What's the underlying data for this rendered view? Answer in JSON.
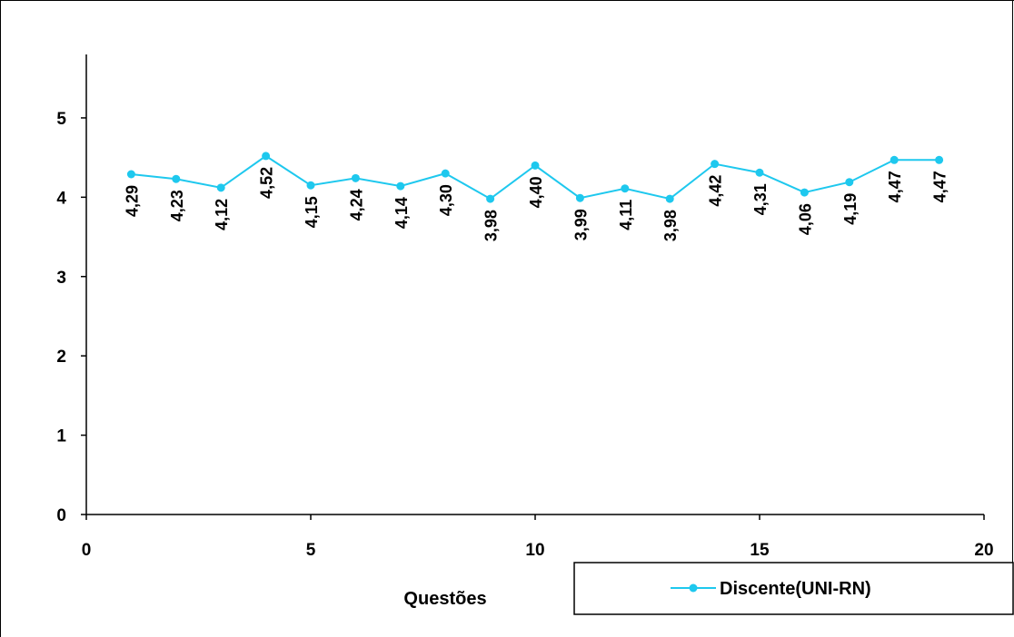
{
  "chart_data": {
    "type": "line",
    "title": "",
    "xlabel": "Questões",
    "ylabel": "",
    "xlim": [
      0,
      20
    ],
    "ylim": [
      0,
      5.8
    ],
    "x_ticks": [
      0,
      5,
      10,
      15,
      20
    ],
    "y_ticks": [
      0,
      1,
      2,
      3,
      4,
      5
    ],
    "x_tick_labels": [
      "0",
      "5",
      "10",
      "15",
      "20"
    ],
    "y_tick_labels": [
      "0",
      "1",
      "2",
      "3",
      "4",
      "5"
    ],
    "grid": false,
    "legend_position": "bottom-right",
    "x": [
      1,
      2,
      3,
      4,
      5,
      6,
      7,
      8,
      9,
      10,
      11,
      12,
      13,
      14,
      15,
      16,
      17,
      18,
      19
    ],
    "series": [
      {
        "name": "Discente(UNI-RN)",
        "color": "#1ec8ee",
        "values": [
          4.29,
          4.23,
          4.12,
          4.52,
          4.15,
          4.24,
          4.14,
          4.3,
          3.98,
          4.4,
          3.99,
          4.11,
          3.98,
          4.42,
          4.31,
          4.06,
          4.19,
          4.47,
          4.47
        ],
        "labels": [
          "4,29",
          "4,23",
          "4,12",
          "4,52",
          "4,15",
          "4,24",
          "4,14",
          "4,30",
          "3,98",
          "4,40",
          "3,99",
          "4,11",
          "3,98",
          "4,42",
          "4,31",
          "4,06",
          "4,19",
          "4,47",
          "4,47"
        ]
      }
    ]
  }
}
